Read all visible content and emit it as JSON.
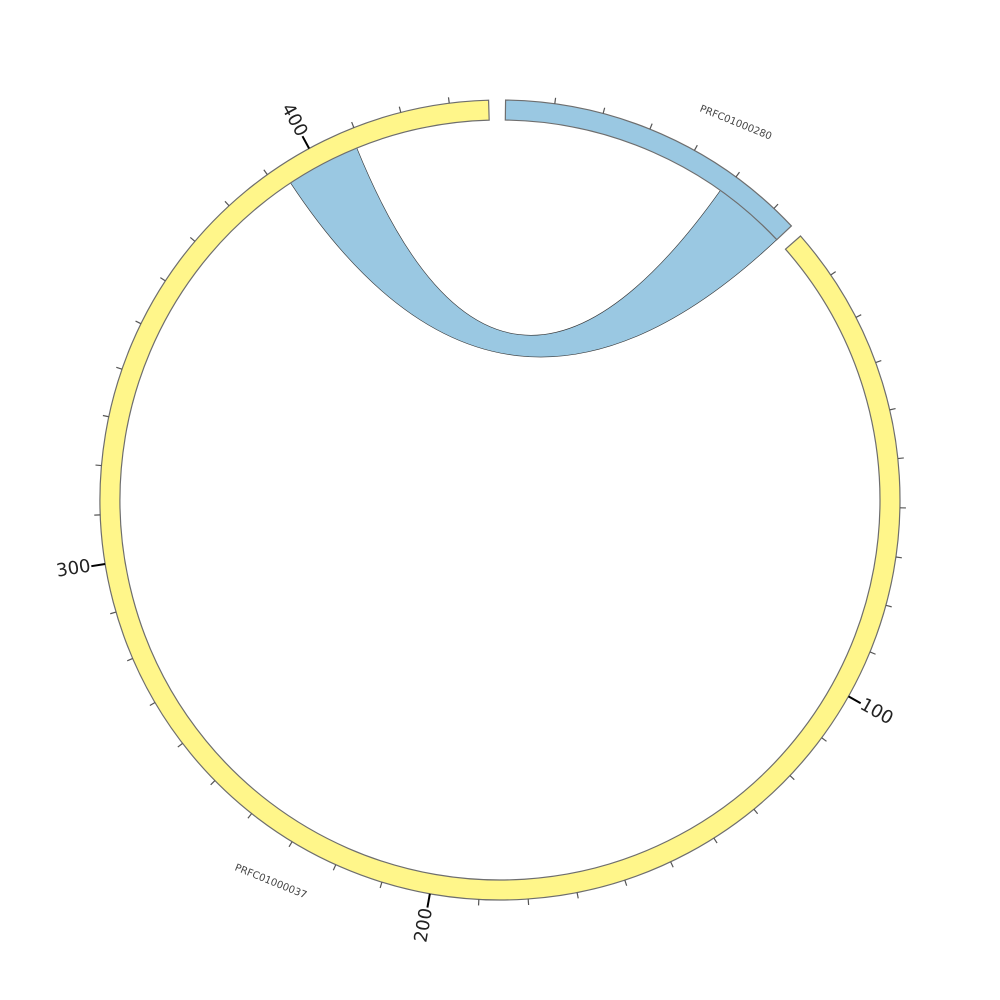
{
  "diagram": {
    "type": "circos-chord",
    "colors": {
      "PRFC01000280": "#9ac8e2",
      "PRFC01000037": "#fff68a",
      "outline": "#6e6e6e",
      "tick": "#555555"
    },
    "segments": [
      {
        "name": "PRFC01000280",
        "length": 65,
        "color": "#9ac8e2",
        "start_deg": 0.8
      },
      {
        "name": "PRFC01000037",
        "length": 438,
        "color": "#fff68a",
        "start_deg": 48.7
      }
    ],
    "degrees_per_unit": 0.707,
    "minor_tick_step": 10,
    "major_ticks": [
      {
        "segment": 1,
        "pos": 100,
        "label": "100"
      },
      {
        "segment": 1,
        "pos": 200,
        "label": "200"
      },
      {
        "segment": 1,
        "pos": 300,
        "label": "300"
      },
      {
        "segment": 1,
        "pos": 400,
        "label": "400"
      }
    ],
    "links": [
      {
        "from": {
          "segment": 0,
          "start": 49,
          "end": 65
        },
        "to": {
          "segment": 1,
          "start": 393,
          "end": 409
        },
        "color": "#9ac8e2"
      }
    ]
  }
}
